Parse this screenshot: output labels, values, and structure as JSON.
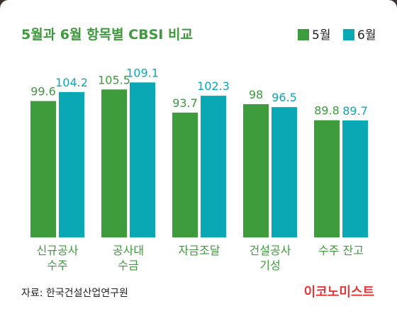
{
  "chart_data": {
    "type": "bar",
    "title": "5월과 6월 항목별 CBSI 비교",
    "categories": [
      [
        "신규공사",
        "수주"
      ],
      [
        "공사대",
        "수금"
      ],
      [
        "자금조달"
      ],
      [
        "건설공사",
        "기성"
      ],
      [
        "수주 잔고"
      ]
    ],
    "series": [
      {
        "name": "5월",
        "values": [
          99.6,
          105.5,
          93.7,
          98,
          89.8
        ],
        "labels": [
          "99.6",
          "105.5",
          "93.7",
          "98",
          "89.8"
        ]
      },
      {
        "name": "6월",
        "values": [
          104.2,
          109.1,
          102.3,
          96.5,
          89.7
        ],
        "labels": [
          "104.2",
          "109.1",
          "102.3",
          "96.5",
          "89.7"
        ]
      }
    ],
    "colors": {
      "may": "#3f9c3c",
      "june": "#0aa8b4",
      "may_label": "#3e9a3c",
      "june_label": "#0aa8b4"
    },
    "ylim": [
      30,
      115
    ],
    "legend_position": "top-right",
    "grid": false
  },
  "footer": {
    "source": "자료: 한국건설산업연구원",
    "brand": "이코노미스트"
  }
}
